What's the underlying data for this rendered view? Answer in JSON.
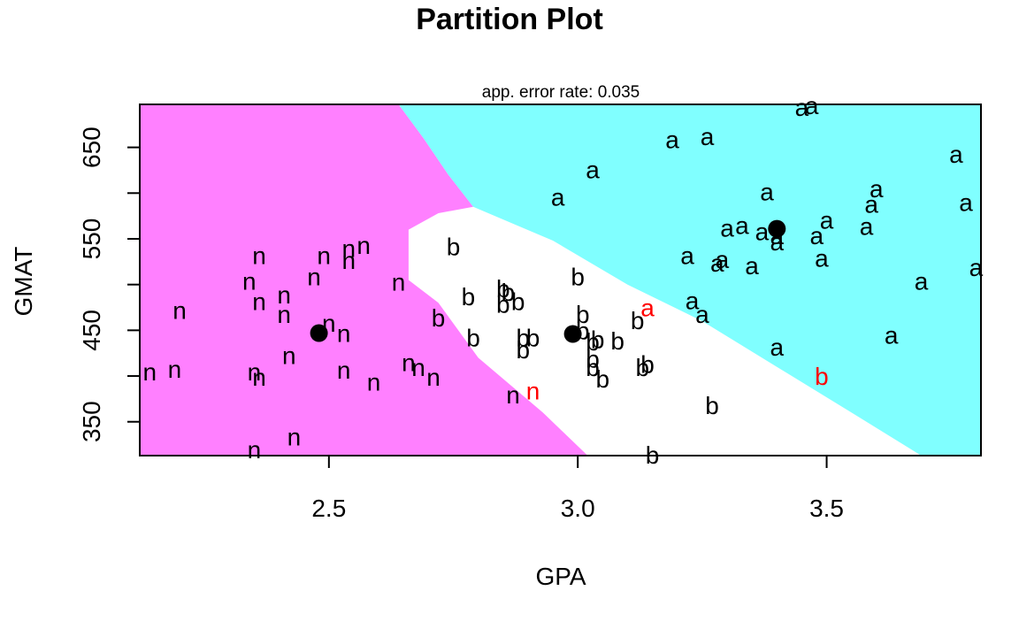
{
  "colors": {
    "class_a": "#80FFFF",
    "class_n": "#FF80FF",
    "class_b": "#FFFFFF",
    "point": "#000000",
    "misclassified": "#FF0000",
    "centroid": "#000000"
  },
  "chart_data": {
    "type": "scatter",
    "title": "Partition Plot",
    "subtitle": "app. error rate: 0.035",
    "xlabel": "GPA",
    "ylabel": "GMAT",
    "xlim": [
      2.12,
      3.81
    ],
    "ylim": [
      313,
      697
    ],
    "xticks": [
      2.5,
      3.0,
      3.5
    ],
    "xtick_labels": [
      "2.5",
      "3.0",
      "3.5"
    ],
    "yticks": [
      350,
      400,
      450,
      500,
      550,
      600,
      650
    ],
    "ytick_labels": [
      "350",
      "",
      "450",
      "",
      "550",
      "",
      "650"
    ],
    "region_description": "Partition of GPA x GMAT space into classes a (cyan), b (white), n (magenta); region boundaries are the paired [x, y] vertices in data units",
    "regions": [
      {
        "class": "n",
        "polygon": [
          [
            2.12,
            313
          ],
          [
            3.02,
            313
          ],
          [
            2.93,
            360
          ],
          [
            2.8,
            420
          ],
          [
            2.72,
            480
          ],
          [
            2.66,
            505
          ],
          [
            2.66,
            560
          ],
          [
            2.72,
            578
          ],
          [
            2.79,
            585
          ],
          [
            2.74,
            620
          ],
          [
            2.69,
            660
          ],
          [
            2.64,
            697
          ],
          [
            2.12,
            697
          ]
        ]
      },
      {
        "class": "a",
        "polygon": [
          [
            2.64,
            697
          ],
          [
            3.81,
            697
          ],
          [
            3.81,
            313
          ],
          [
            3.69,
            313
          ],
          [
            3.55,
            360
          ],
          [
            3.4,
            410
          ],
          [
            3.25,
            460
          ],
          [
            3.1,
            500
          ],
          [
            2.95,
            548
          ],
          [
            2.79,
            585
          ],
          [
            2.74,
            620
          ],
          [
            2.69,
            660
          ]
        ]
      }
    ],
    "centroids": [
      {
        "x": 2.48,
        "y": 447
      },
      {
        "x": 2.99,
        "y": 446
      },
      {
        "x": 3.4,
        "y": 561
      }
    ],
    "points": [
      {
        "x": 2.14,
        "y": 404,
        "label": "n"
      },
      {
        "x": 2.19,
        "y": 407,
        "label": "n"
      },
      {
        "x": 2.2,
        "y": 471,
        "label": "n"
      },
      {
        "x": 2.35,
        "y": 404,
        "label": "n"
      },
      {
        "x": 2.36,
        "y": 398,
        "label": "n"
      },
      {
        "x": 2.35,
        "y": 319,
        "label": "n"
      },
      {
        "x": 2.34,
        "y": 503,
        "label": "n"
      },
      {
        "x": 2.36,
        "y": 531,
        "label": "n"
      },
      {
        "x": 2.36,
        "y": 481,
        "label": "n"
      },
      {
        "x": 2.41,
        "y": 488,
        "label": "n"
      },
      {
        "x": 2.41,
        "y": 467,
        "label": "n"
      },
      {
        "x": 2.42,
        "y": 422,
        "label": "n"
      },
      {
        "x": 2.43,
        "y": 333,
        "label": "n"
      },
      {
        "x": 2.47,
        "y": 508,
        "label": "n"
      },
      {
        "x": 2.49,
        "y": 531,
        "label": "n"
      },
      {
        "x": 2.5,
        "y": 457,
        "label": "n"
      },
      {
        "x": 2.53,
        "y": 446,
        "label": "n"
      },
      {
        "x": 2.53,
        "y": 406,
        "label": "n"
      },
      {
        "x": 2.54,
        "y": 526,
        "label": "n"
      },
      {
        "x": 2.54,
        "y": 539,
        "label": "n"
      },
      {
        "x": 2.57,
        "y": 542,
        "label": "n"
      },
      {
        "x": 2.59,
        "y": 393,
        "label": "n"
      },
      {
        "x": 2.64,
        "y": 502,
        "label": "n"
      },
      {
        "x": 2.66,
        "y": 414,
        "label": "n"
      },
      {
        "x": 2.68,
        "y": 409,
        "label": "n"
      },
      {
        "x": 2.71,
        "y": 398,
        "label": "n"
      },
      {
        "x": 2.87,
        "y": 379,
        "label": "n"
      },
      {
        "x": 2.91,
        "y": 383,
        "label": "n",
        "misclassified": true
      },
      {
        "x": 2.72,
        "y": 463,
        "label": "b"
      },
      {
        "x": 2.75,
        "y": 541,
        "label": "b"
      },
      {
        "x": 2.78,
        "y": 486,
        "label": "b"
      },
      {
        "x": 2.79,
        "y": 441,
        "label": "b"
      },
      {
        "x": 2.85,
        "y": 495,
        "label": "b"
      },
      {
        "x": 2.85,
        "y": 478,
        "label": "b"
      },
      {
        "x": 2.86,
        "y": 491,
        "label": "b"
      },
      {
        "x": 2.88,
        "y": 481,
        "label": "b"
      },
      {
        "x": 2.89,
        "y": 441,
        "label": "b"
      },
      {
        "x": 2.89,
        "y": 428,
        "label": "b"
      },
      {
        "x": 2.91,
        "y": 441,
        "label": "b"
      },
      {
        "x": 3.0,
        "y": 508,
        "label": "b"
      },
      {
        "x": 3.01,
        "y": 467,
        "label": "b"
      },
      {
        "x": 3.01,
        "y": 449,
        "label": "b"
      },
      {
        "x": 3.03,
        "y": 437,
        "label": "b"
      },
      {
        "x": 3.03,
        "y": 418,
        "label": "b"
      },
      {
        "x": 3.03,
        "y": 409,
        "label": "b"
      },
      {
        "x": 3.04,
        "y": 439,
        "label": "b"
      },
      {
        "x": 3.05,
        "y": 396,
        "label": "b"
      },
      {
        "x": 3.08,
        "y": 438,
        "label": "b"
      },
      {
        "x": 3.12,
        "y": 460,
        "label": "b"
      },
      {
        "x": 3.13,
        "y": 409,
        "label": "b"
      },
      {
        "x": 3.14,
        "y": 412,
        "label": "b"
      },
      {
        "x": 3.15,
        "y": 313,
        "label": "b"
      },
      {
        "x": 3.27,
        "y": 367,
        "label": "b"
      },
      {
        "x": 3.49,
        "y": 399,
        "label": "b",
        "misclassified": true
      },
      {
        "x": 3.14,
        "y": 474,
        "label": "a",
        "misclassified": true
      },
      {
        "x": 2.96,
        "y": 595,
        "label": "a"
      },
      {
        "x": 3.03,
        "y": 625,
        "label": "a"
      },
      {
        "x": 3.19,
        "y": 658,
        "label": "a"
      },
      {
        "x": 3.26,
        "y": 661,
        "label": "a"
      },
      {
        "x": 3.22,
        "y": 531,
        "label": "a"
      },
      {
        "x": 3.23,
        "y": 482,
        "label": "a"
      },
      {
        "x": 3.25,
        "y": 467,
        "label": "a"
      },
      {
        "x": 3.28,
        "y": 523,
        "label": "a"
      },
      {
        "x": 3.29,
        "y": 527,
        "label": "a"
      },
      {
        "x": 3.3,
        "y": 561,
        "label": "a"
      },
      {
        "x": 3.33,
        "y": 564,
        "label": "a"
      },
      {
        "x": 3.35,
        "y": 520,
        "label": "a"
      },
      {
        "x": 3.37,
        "y": 557,
        "label": "a"
      },
      {
        "x": 3.38,
        "y": 601,
        "label": "a"
      },
      {
        "x": 3.4,
        "y": 546,
        "label": "a"
      },
      {
        "x": 3.4,
        "y": 553,
        "label": "a"
      },
      {
        "x": 3.4,
        "y": 431,
        "label": "a"
      },
      {
        "x": 3.45,
        "y": 693,
        "label": "a"
      },
      {
        "x": 3.47,
        "y": 695,
        "label": "a"
      },
      {
        "x": 3.48,
        "y": 553,
        "label": "a"
      },
      {
        "x": 3.49,
        "y": 528,
        "label": "a"
      },
      {
        "x": 3.5,
        "y": 570,
        "label": "a"
      },
      {
        "x": 3.58,
        "y": 563,
        "label": "a"
      },
      {
        "x": 3.59,
        "y": 587,
        "label": "a"
      },
      {
        "x": 3.6,
        "y": 604,
        "label": "a"
      },
      {
        "x": 3.63,
        "y": 444,
        "label": "a"
      },
      {
        "x": 3.69,
        "y": 503,
        "label": "a"
      },
      {
        "x": 3.76,
        "y": 642,
        "label": "a"
      },
      {
        "x": 3.78,
        "y": 589,
        "label": "a"
      },
      {
        "x": 3.8,
        "y": 518,
        "label": "a"
      }
    ]
  }
}
